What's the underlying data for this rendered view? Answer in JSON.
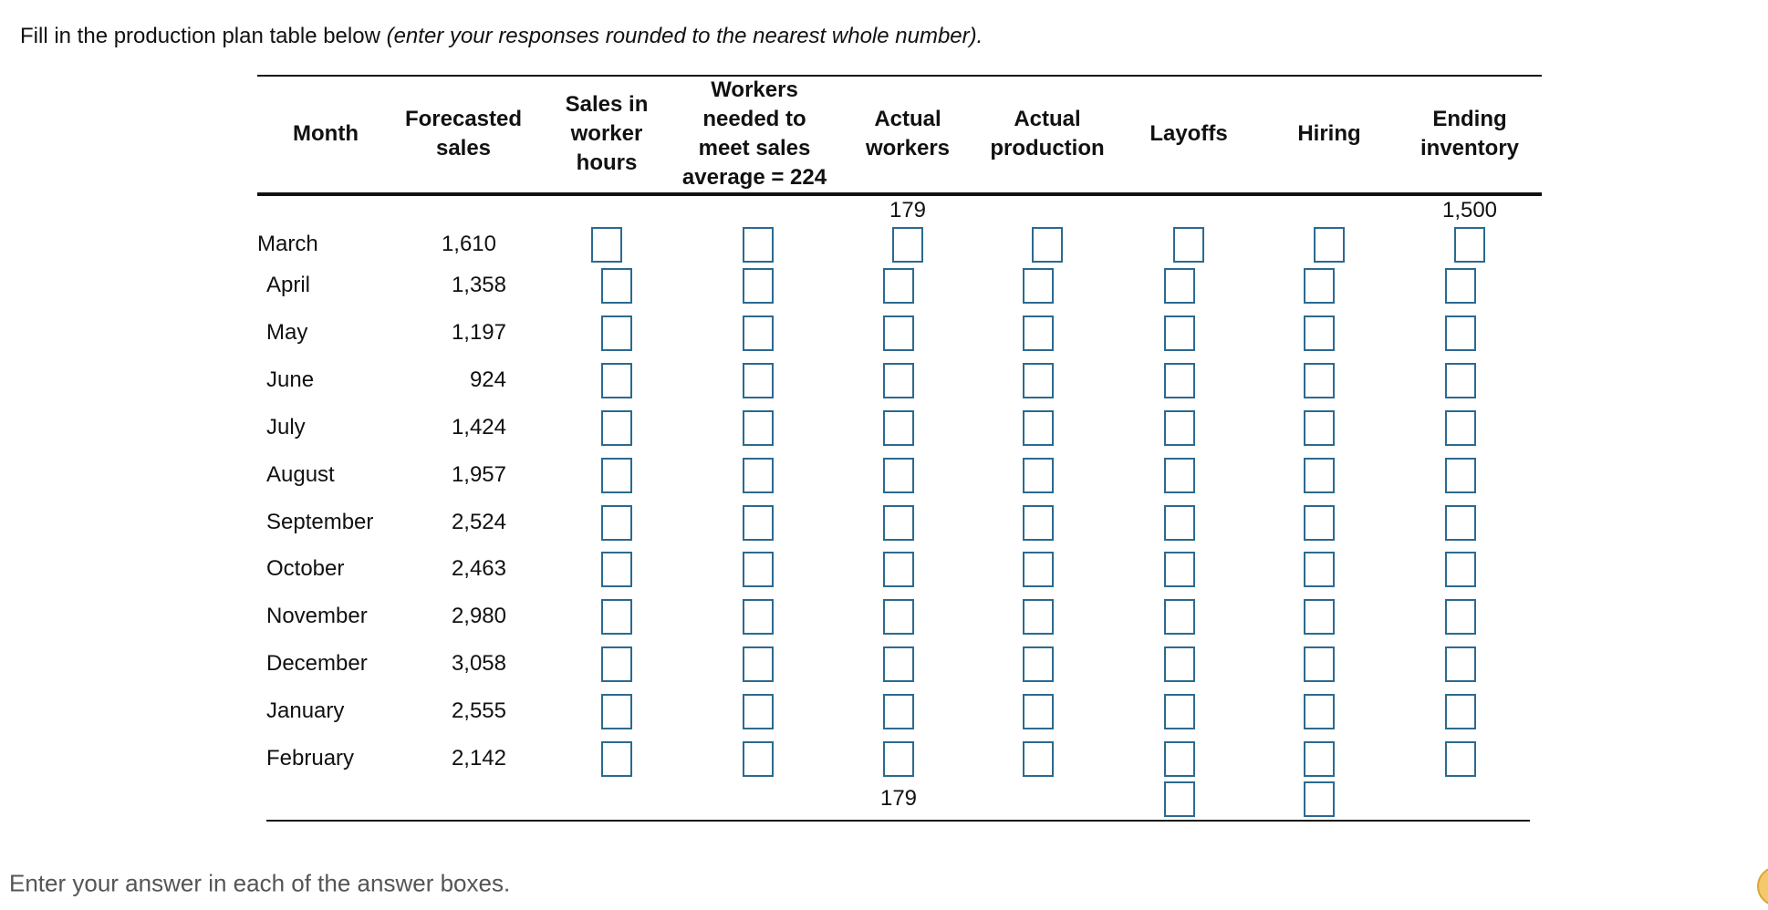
{
  "instruction": {
    "text": "Fill in the production plan table below",
    "note": "(enter your responses rounded to the nearest whole number)."
  },
  "table": {
    "headers": [
      [
        "Month"
      ],
      [
        "Forecasted",
        "sales"
      ],
      [
        "Sales in",
        "worker",
        "hours"
      ],
      [
        "Workers",
        "needed to",
        "meet sales",
        "average = 224"
      ],
      [
        "Actual",
        "workers"
      ],
      [
        "Actual",
        "production"
      ],
      [
        "Layoffs"
      ],
      [
        "Hiring"
      ],
      [
        "Ending",
        "inventory"
      ]
    ],
    "initial_actual_workers": "179",
    "initial_ending_inventory": "1,500",
    "rows": [
      {
        "month": "March",
        "forecast": "1,610"
      },
      {
        "month": "April",
        "forecast": "1,358"
      },
      {
        "month": "May",
        "forecast": "1,197"
      },
      {
        "month": "June",
        "forecast": "924"
      },
      {
        "month": "July",
        "forecast": "1,424"
      },
      {
        "month": "August",
        "forecast": "1,957"
      },
      {
        "month": "September",
        "forecast": "2,524"
      },
      {
        "month": "October",
        "forecast": "2,463"
      },
      {
        "month": "November",
        "forecast": "2,980"
      },
      {
        "month": "December",
        "forecast": "3,058"
      },
      {
        "month": "January",
        "forecast": "2,555"
      },
      {
        "month": "February",
        "forecast": "2,142"
      }
    ],
    "final_actual_workers": "179"
  },
  "footer": "Enter your answer in each of the answer boxes."
}
